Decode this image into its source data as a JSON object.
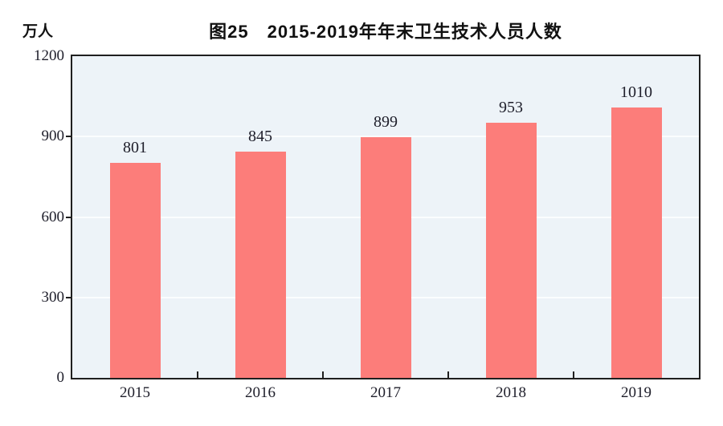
{
  "chart_data": {
    "type": "bar",
    "title": "图25　2015-2019年年末卫生技术人员人数",
    "unit_label": "万人",
    "categories": [
      "2015",
      "2016",
      "2017",
      "2018",
      "2019"
    ],
    "values": [
      801,
      845,
      899,
      953,
      1010
    ],
    "ylim": [
      0,
      1200
    ],
    "yticks": [
      0,
      300,
      600,
      900,
      1200
    ],
    "xlabel": "",
    "ylabel": "万人",
    "legend_position": "none",
    "grid": "horizontal-only",
    "colors": {
      "bar": "#fc7d7a",
      "plot_background": "#edf3f8",
      "gridline": "#fbfdfe",
      "axis": "#1f1f1f",
      "label_text": "#1e1e2a",
      "title_text": "#111111"
    }
  }
}
